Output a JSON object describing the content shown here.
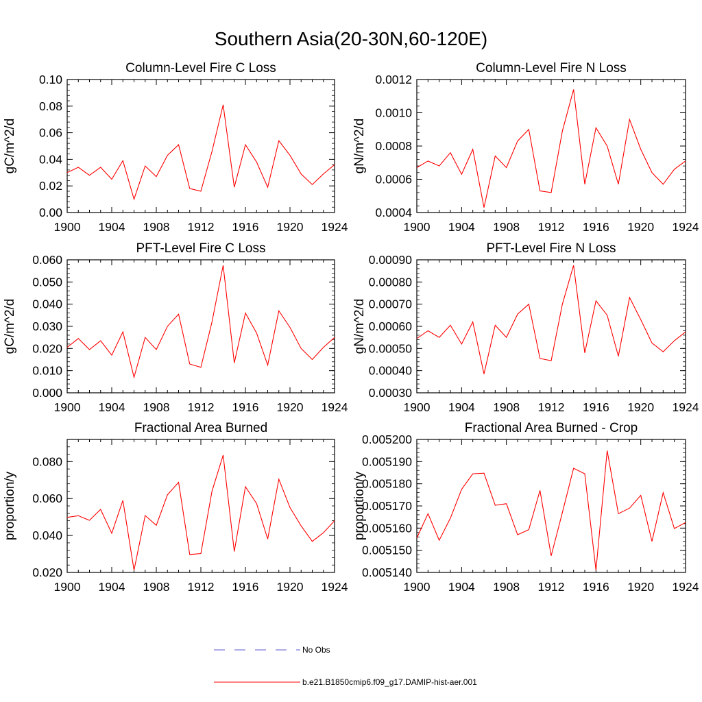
{
  "figure": {
    "title": "Southern Asia(20-30N,60-120E)"
  },
  "legend": {
    "entries": [
      {
        "label": "No Obs",
        "color": "#5a5ad0",
        "style": "dashed"
      },
      {
        "label": "b.e21.B1850cmip6.f09_g17.DAMIP-hist-aer.001",
        "color": "#ff0000",
        "style": "solid"
      }
    ]
  },
  "chart_data": [
    {
      "type": "line",
      "title": "Column-Level Fire C Loss",
      "ylabel": "gC/m^2/d",
      "xlim": [
        1900,
        1924
      ],
      "ylim": [
        0.0,
        0.1
      ],
      "xticks": [
        "1900",
        "1904",
        "1908",
        "1912",
        "1916",
        "1920",
        "1924"
      ],
      "yticks": [
        "0.00",
        "0.02",
        "0.04",
        "0.06",
        "0.08",
        "0.10"
      ],
      "series": [
        {
          "color": "#ff0000",
          "x": [
            1900,
            1901,
            1902,
            1903,
            1904,
            1905,
            1906,
            1907,
            1908,
            1909,
            1910,
            1911,
            1912,
            1913,
            1914,
            1915,
            1916,
            1917,
            1918,
            1919,
            1920,
            1921,
            1922,
            1923,
            1924
          ],
          "values": [
            0.03,
            0.034,
            0.028,
            0.034,
            0.025,
            0.039,
            0.01,
            0.035,
            0.027,
            0.043,
            0.051,
            0.018,
            0.016,
            0.046,
            0.081,
            0.019,
            0.051,
            0.038,
            0.019,
            0.054,
            0.043,
            0.029,
            0.021,
            0.029,
            0.036
          ]
        }
      ]
    },
    {
      "type": "line",
      "title": "Column-Level Fire N Loss",
      "ylabel": "gN/m^2/d",
      "xlim": [
        1900,
        1924
      ],
      "ylim": [
        0.0004,
        0.0012
      ],
      "xticks": [
        "1900",
        "1904",
        "1908",
        "1912",
        "1916",
        "1920",
        "1924"
      ],
      "yticks": [
        "0.0004",
        "0.0006",
        "0.0008",
        "0.0010",
        "0.0012"
      ],
      "series": [
        {
          "color": "#ff0000",
          "x": [
            1900,
            1901,
            1902,
            1903,
            1904,
            1905,
            1906,
            1907,
            1908,
            1909,
            1910,
            1911,
            1912,
            1913,
            1914,
            1915,
            1916,
            1917,
            1918,
            1919,
            1920,
            1921,
            1922,
            1923,
            1924
          ],
          "values": [
            0.00067,
            0.00071,
            0.00068,
            0.00076,
            0.00063,
            0.00078,
            0.00043,
            0.00074,
            0.00067,
            0.00083,
            0.0009,
            0.00053,
            0.00052,
            0.00089,
            0.00114,
            0.00057,
            0.00091,
            0.0008,
            0.00057,
            0.00096,
            0.00078,
            0.00064,
            0.00057,
            0.00066,
            0.00071
          ]
        }
      ]
    },
    {
      "type": "line",
      "title": "PFT-Level Fire C Loss",
      "ylabel": "gC/m^2/d",
      "xlim": [
        1900,
        1924
      ],
      "ylim": [
        0.0,
        0.06
      ],
      "xticks": [
        "1900",
        "1904",
        "1908",
        "1912",
        "1916",
        "1920",
        "1924"
      ],
      "yticks": [
        "0.000",
        "0.010",
        "0.020",
        "0.030",
        "0.040",
        "0.050",
        "0.060"
      ],
      "series": [
        {
          "color": "#ff0000",
          "x": [
            1900,
            1901,
            1902,
            1903,
            1904,
            1905,
            1906,
            1907,
            1908,
            1909,
            1910,
            1911,
            1912,
            1913,
            1914,
            1915,
            1916,
            1917,
            1918,
            1919,
            1920,
            1921,
            1922,
            1923,
            1924
          ],
          "values": [
            0.0205,
            0.0245,
            0.0195,
            0.0235,
            0.017,
            0.0275,
            0.007,
            0.025,
            0.0195,
            0.03,
            0.0355,
            0.013,
            0.0115,
            0.032,
            0.0575,
            0.0135,
            0.036,
            0.027,
            0.0125,
            0.037,
            0.0295,
            0.02,
            0.015,
            0.0205,
            0.025
          ]
        }
      ]
    },
    {
      "type": "line",
      "title": "PFT-Level Fire N Loss",
      "ylabel": "gN/m^2/d",
      "xlim": [
        1900,
        1924
      ],
      "ylim": [
        0.0003,
        0.0009
      ],
      "xticks": [
        "1900",
        "1904",
        "1908",
        "1912",
        "1916",
        "1920",
        "1924"
      ],
      "yticks": [
        "0.00030",
        "0.00040",
        "0.00050",
        "0.00060",
        "0.00070",
        "0.00080",
        "0.00090"
      ],
      "series": [
        {
          "color": "#ff0000",
          "x": [
            1900,
            1901,
            1902,
            1903,
            1904,
            1905,
            1906,
            1907,
            1908,
            1909,
            1910,
            1911,
            1912,
            1913,
            1914,
            1915,
            1916,
            1917,
            1918,
            1919,
            1920,
            1921,
            1922,
            1923,
            1924
          ],
          "values": [
            0.000545,
            0.00058,
            0.00055,
            0.000605,
            0.00052,
            0.00062,
            0.000385,
            0.000605,
            0.00055,
            0.000655,
            0.0007,
            0.000455,
            0.000445,
            0.0007,
            0.000875,
            0.00048,
            0.000715,
            0.00065,
            0.000465,
            0.00073,
            0.00063,
            0.000525,
            0.000485,
            0.000535,
            0.000575
          ]
        }
      ]
    },
    {
      "type": "line",
      "title": "Fractional Area Burned",
      "ylabel": "proportion/y",
      "xlim": [
        1900,
        1924
      ],
      "ylim": [
        0.02,
        0.092
      ],
      "xticks": [
        "1900",
        "1904",
        "1908",
        "1912",
        "1916",
        "1920",
        "1924"
      ],
      "yticks": [
        "0.020",
        "0.040",
        "0.060",
        "0.080"
      ],
      "series": [
        {
          "color": "#ff0000",
          "x": [
            1900,
            1901,
            1902,
            1903,
            1904,
            1905,
            1906,
            1907,
            1908,
            1909,
            1910,
            1911,
            1912,
            1913,
            1914,
            1915,
            1916,
            1917,
            1918,
            1919,
            1920,
            1921,
            1922,
            1923,
            1924
          ],
          "values": [
            0.0498,
            0.0507,
            0.0482,
            0.0541,
            0.0412,
            0.059,
            0.0212,
            0.0508,
            0.0455,
            0.062,
            0.0688,
            0.0297,
            0.0302,
            0.064,
            0.0835,
            0.0313,
            0.0664,
            0.0573,
            0.0381,
            0.0705,
            0.0551,
            0.0452,
            0.0368,
            0.0415,
            0.048
          ]
        }
      ]
    },
    {
      "type": "line",
      "title": "Fractional Area Burned - Crop",
      "ylabel": "proportion/y",
      "xlim": [
        1900,
        1924
      ],
      "ylim": [
        0.00514,
        0.0052
      ],
      "xticks": [
        "1900",
        "1904",
        "1908",
        "1912",
        "1916",
        "1920",
        "1924"
      ],
      "yticks": [
        "0.005140",
        "0.005150",
        "0.005160",
        "0.005170",
        "0.005180",
        "0.005190",
        "0.005200"
      ],
      "series": [
        {
          "color": "#ff0000",
          "x": [
            1900,
            1901,
            1902,
            1903,
            1904,
            1905,
            1906,
            1907,
            1908,
            1909,
            1910,
            1911,
            1912,
            1913,
            1914,
            1915,
            1916,
            1917,
            1918,
            1919,
            1920,
            1921,
            1922,
            1923,
            1924
          ],
          "values": [
            0.0051555,
            0.0051665,
            0.0051545,
            0.0051645,
            0.0051775,
            0.0051845,
            0.0051848,
            0.0051703,
            0.005171,
            0.005157,
            0.0051593,
            0.005177,
            0.0051475,
            0.005167,
            0.005187,
            0.0051845,
            0.005141,
            0.005195,
            0.0051665,
            0.005169,
            0.0051748,
            0.005154,
            0.005176,
            0.0051598,
            0.0051625
          ]
        }
      ]
    }
  ]
}
